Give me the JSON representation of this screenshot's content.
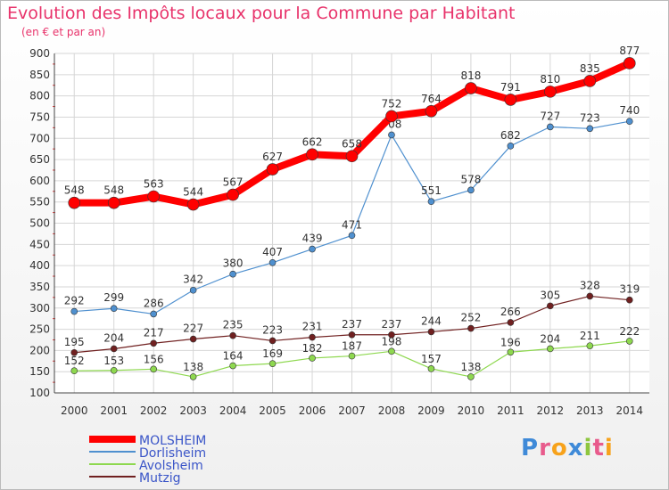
{
  "header": {
    "title": "Evolution des Impôts locaux pour la Commune par Habitant",
    "subtitle": "(en € et par an)"
  },
  "brand": {
    "logo_text": "Proxiti"
  },
  "chart_data": {
    "type": "line",
    "title": "Evolution des Impôts locaux pour la Commune par Habitant",
    "subtitle": "(en € et par an)",
    "xlabel": "",
    "ylabel": "",
    "x": [
      2000,
      2001,
      2002,
      2003,
      2004,
      2005,
      2006,
      2007,
      2008,
      2009,
      2010,
      2011,
      2012,
      2013,
      2014
    ],
    "ylim": [
      100,
      900
    ],
    "yticks": [
      100,
      150,
      200,
      250,
      300,
      350,
      400,
      450,
      500,
      550,
      600,
      650,
      700,
      750,
      800,
      850,
      900
    ],
    "grid": true,
    "legend_position": "bottom-left",
    "series": [
      {
        "name": "MOLSHEIM",
        "color": "#ff0000",
        "values": [
          548,
          548,
          563,
          544,
          567,
          627,
          662,
          658,
          752,
          764,
          818,
          791,
          810,
          835,
          877
        ]
      },
      {
        "name": "Dorlisheim",
        "color": "#4f90cf",
        "values": [
          292,
          299,
          286,
          342,
          380,
          407,
          439,
          471,
          708,
          551,
          578,
          682,
          727,
          723,
          740
        ]
      },
      {
        "name": "Avolsheim",
        "color": "#8ed84f",
        "values": [
          152,
          153,
          156,
          138,
          164,
          169,
          182,
          187,
          198,
          157,
          138,
          196,
          204,
          211,
          222
        ]
      },
      {
        "name": "Mutzig",
        "color": "#702020",
        "values": [
          195,
          204,
          217,
          227,
          235,
          223,
          231,
          237,
          237,
          244,
          252,
          266,
          305,
          328,
          319
        ]
      }
    ]
  }
}
